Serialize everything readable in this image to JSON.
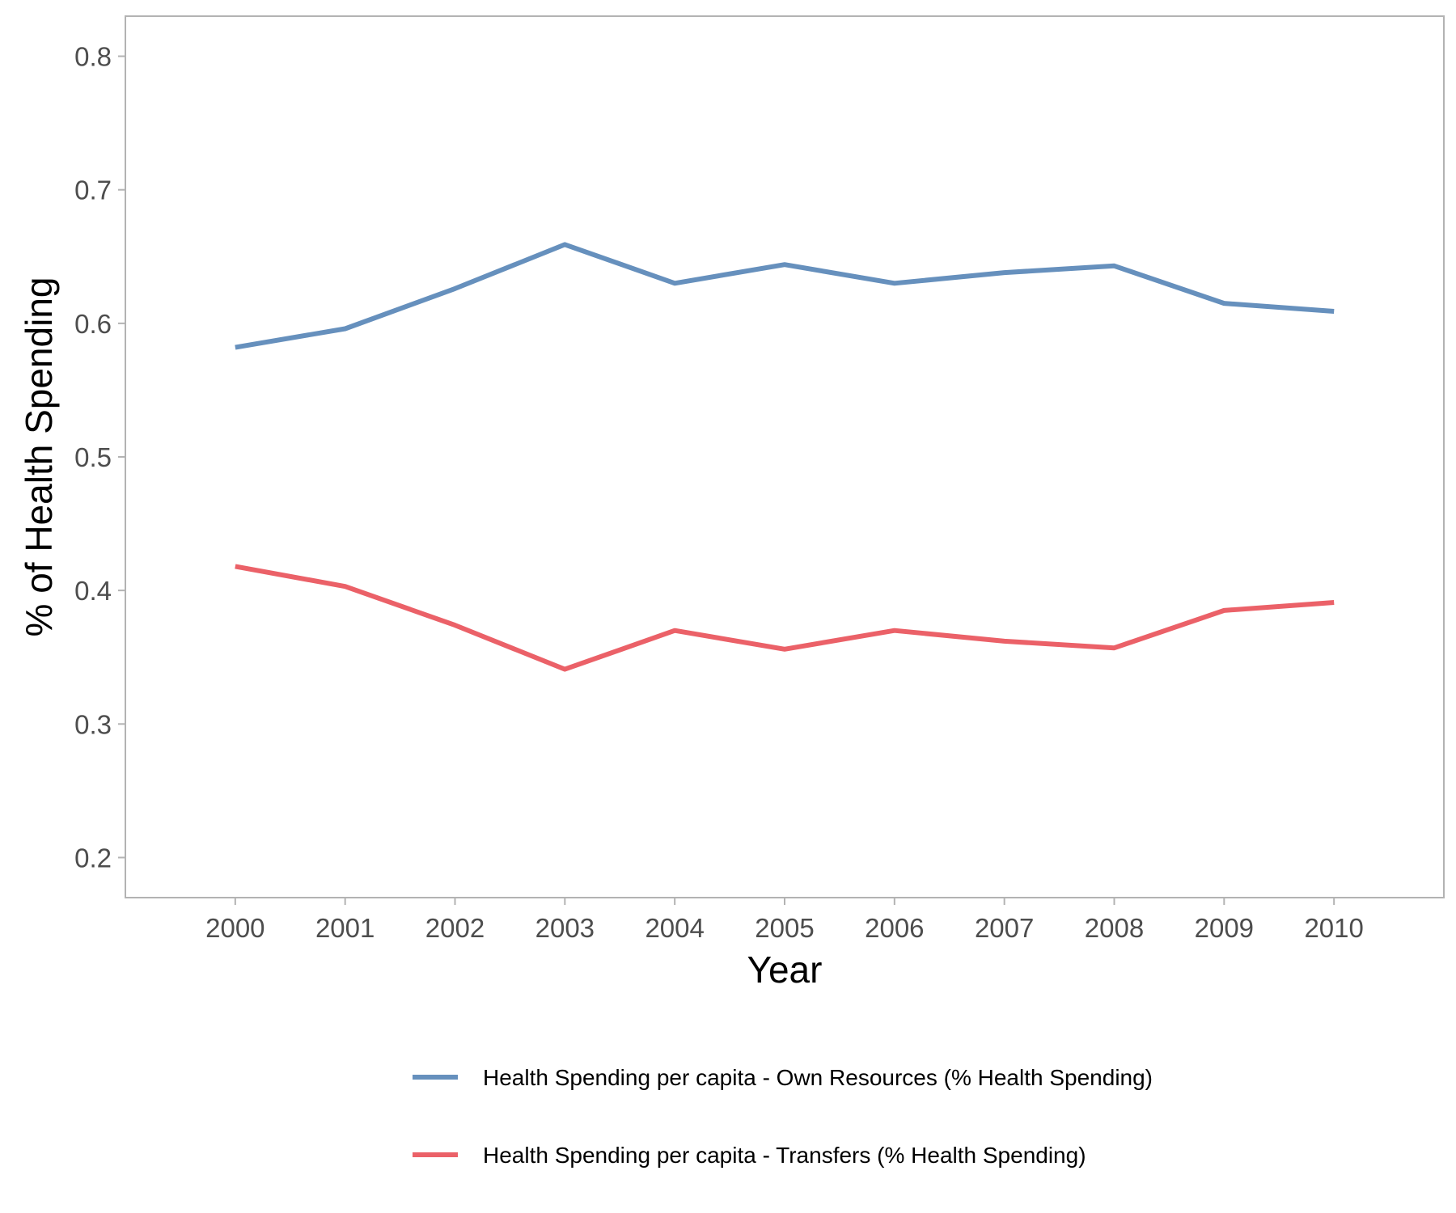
{
  "chart_data": {
    "type": "line",
    "xlabel": "Year",
    "ylabel": "% of Health Spending",
    "x": [
      2000,
      2001,
      2002,
      2003,
      2004,
      2005,
      2006,
      2007,
      2008,
      2009,
      2010
    ],
    "xlim": [
      1999,
      2011
    ],
    "ylim": [
      0.17,
      0.83
    ],
    "yticks": [
      0.2,
      0.3,
      0.4,
      0.5,
      0.6,
      0.7,
      0.8
    ],
    "ytick_labels": [
      "0.2",
      "0.3",
      "0.4",
      "0.5",
      "0.6",
      "0.7",
      "0.8"
    ],
    "xtick_labels": [
      "2000",
      "2001",
      "2002",
      "2003",
      "2004",
      "2005",
      "2006",
      "2007",
      "2008",
      "2009",
      "2010"
    ],
    "grid": false,
    "legend_position": "bottom",
    "series": [
      {
        "name": "Health Spending per capita - Own Resources (% Health Spending)",
        "color": "#6690bd",
        "values": [
          0.582,
          0.596,
          0.626,
          0.659,
          0.63,
          0.644,
          0.63,
          0.638,
          0.643,
          0.615,
          0.609
        ]
      },
      {
        "name": "Health Spending per capita - Transfers (% Health Spending)",
        "color": "#eb6168",
        "values": [
          0.418,
          0.403,
          0.374,
          0.341,
          0.37,
          0.356,
          0.37,
          0.362,
          0.357,
          0.385,
          0.391
        ]
      }
    ]
  }
}
